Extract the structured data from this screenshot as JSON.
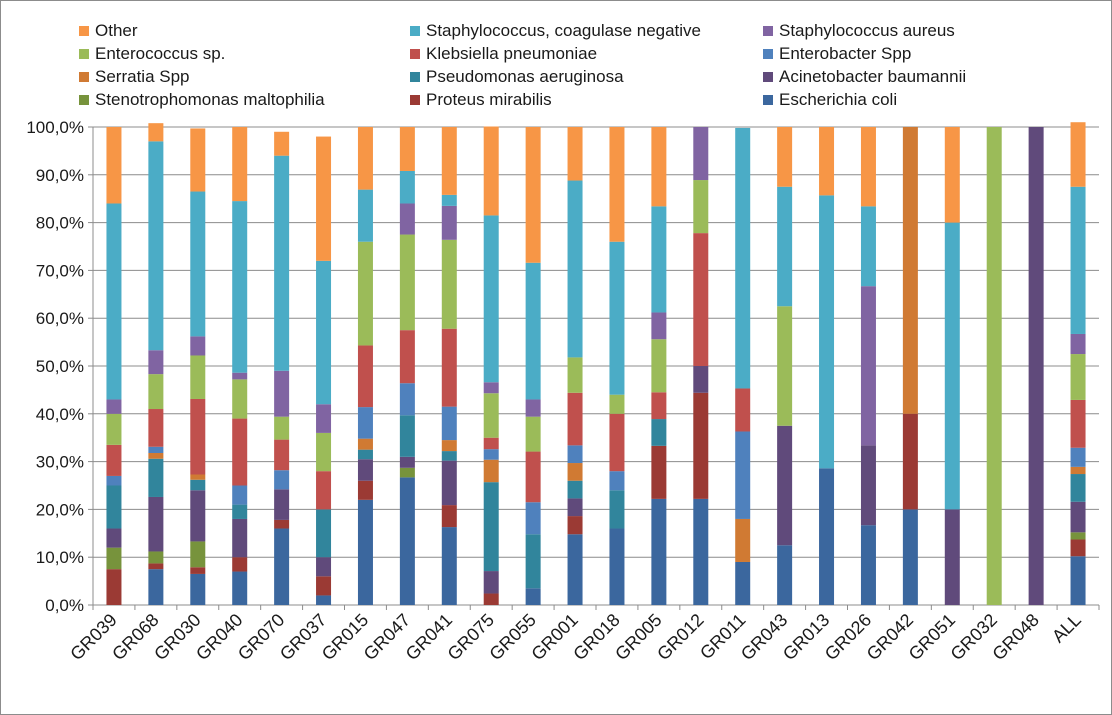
{
  "colors": {
    "Other": "#f79646",
    "Staphylococcus, coagulase negative": "#4bacc6",
    "Staphylococcus aureus": "#8064a2",
    "Enterococcus sp.": "#9bbb59",
    "Klebsiella pneumoniae": "#c0504d",
    "Enterobacter Spp": "#4f81bd",
    "Serratia Spp": "#d07a33",
    "Pseudomonas aeruginosa": "#31859c",
    "Acinetobacter baumannii": "#604a7b",
    "Stenotrophomonas maltophilia": "#77933c",
    "Proteus mirabilis": "#9b3a34",
    "Escherichia coli": "#3b679e"
  },
  "chart_data": {
    "type": "bar",
    "stacked": true,
    "title": "",
    "xlabel": "",
    "ylabel": "",
    "ylim": [
      0,
      100
    ],
    "y_ticks": [
      "0,0%",
      "10,0%",
      "20,0%",
      "30,0%",
      "40,0%",
      "50,0%",
      "60,0%",
      "70,0%",
      "80,0%",
      "90,0%",
      "100,0%"
    ],
    "grid": true,
    "legend_position": "top",
    "legend": [
      "Other",
      "Staphylococcus, coagulase negative",
      "Staphylococcus aureus",
      "Enterococcus sp.",
      "Klebsiella pneumoniae",
      "Enterobacter Spp",
      "Serratia Spp",
      "Pseudomonas aeruginosa",
      "Acinetobacter baumannii",
      "Stenotrophomonas maltophilia",
      "Proteus mirabilis",
      "Escherichia coli"
    ],
    "categories": [
      "GR039",
      "GR068",
      "GR030",
      "GR040",
      "GR070",
      "GR037",
      "GR015",
      "GR047",
      "GR041",
      "GR075",
      "GR055",
      "GR001",
      "GR018",
      "GR005",
      "GR012",
      "GR011",
      "GR043",
      "GR013",
      "GR026",
      "GR042",
      "GR051",
      "GR032",
      "GR048",
      "ALL"
    ],
    "series": [
      {
        "name": "Escherichia coli",
        "values": [
          0,
          7.5,
          6.5,
          7,
          16,
          2,
          22,
          26.7,
          16.3,
          0,
          3.5,
          14.8,
          16,
          22.2,
          22.2,
          9,
          12.5,
          28.6,
          16.7,
          20,
          0,
          0,
          0,
          10.2
        ]
      },
      {
        "name": "Proteus mirabilis",
        "values": [
          7.5,
          1.2,
          1.4,
          3,
          1.8,
          4,
          4,
          0,
          4.6,
          2.4,
          0,
          3.8,
          0,
          11.1,
          22.2,
          0,
          0,
          0,
          0,
          20,
          0,
          0,
          0,
          3.5
        ]
      },
      {
        "name": "Stenotrophomonas maltophilia",
        "values": [
          4.5,
          2.5,
          5.4,
          0,
          0,
          0,
          0,
          2,
          0,
          0,
          0,
          0,
          0,
          0,
          0,
          0,
          0,
          0,
          0,
          0,
          0,
          0,
          0,
          1.5
        ]
      },
      {
        "name": "Acinetobacter baumannii",
        "values": [
          4,
          11.4,
          10.7,
          8,
          6.4,
          4,
          4.5,
          2.3,
          9.3,
          4.7,
          0,
          3.7,
          0,
          0,
          5.6,
          0,
          25,
          0,
          16.7,
          0,
          20,
          0,
          100,
          6.4
        ]
      },
      {
        "name": "Pseudomonas aeruginosa",
        "values": [
          9,
          8,
          2.2,
          3,
          0,
          10,
          2,
          8.7,
          2,
          18.6,
          11.3,
          3.7,
          8,
          5.6,
          0,
          0,
          0,
          0,
          0,
          0,
          0,
          0,
          0,
          5.8
        ]
      },
      {
        "name": "Serratia Spp",
        "values": [
          0,
          1.2,
          1.1,
          0,
          0,
          0,
          2.3,
          0,
          2.3,
          4.7,
          0,
          3.7,
          0,
          0,
          0,
          9,
          0,
          0,
          0,
          60,
          0,
          0,
          0,
          1.5
        ]
      },
      {
        "name": "Enterobacter Spp",
        "values": [
          2,
          1.3,
          0,
          4,
          4,
          0,
          6.6,
          6.7,
          7,
          2.2,
          6.7,
          3.7,
          4,
          0,
          0,
          18.3,
          0,
          0,
          0,
          0,
          0,
          0,
          0,
          4
        ]
      },
      {
        "name": "Klebsiella pneumoniae",
        "values": [
          6.5,
          7.9,
          15.8,
          14,
          6.4,
          8,
          12.9,
          11.1,
          16.3,
          2.4,
          10.6,
          11,
          12,
          5.6,
          27.8,
          9,
          0,
          0,
          0,
          0,
          0,
          0,
          0,
          10
        ]
      },
      {
        "name": "Enterococcus sp.",
        "values": [
          6.5,
          7.3,
          9.1,
          8.2,
          4.8,
          8,
          21.7,
          20,
          18.6,
          9.3,
          7.3,
          7.4,
          4,
          11.1,
          11.1,
          0,
          25,
          0,
          0,
          0,
          0,
          100,
          0,
          9.6
        ]
      },
      {
        "name": "Staphylococcus aureus",
        "values": [
          3,
          5,
          4,
          1.4,
          9.6,
          6,
          0,
          6.5,
          7.1,
          2.3,
          3.6,
          0,
          0,
          5.6,
          11.1,
          0,
          0,
          0,
          33.3,
          0,
          0,
          0,
          0,
          4.2
        ]
      },
      {
        "name": "Staphylococcus, coagulase negative",
        "values": [
          41,
          43.7,
          30.3,
          35.9,
          45,
          30,
          10.9,
          6.8,
          2.3,
          34.9,
          28.6,
          37,
          32,
          22.2,
          0,
          54.5,
          25,
          57.1,
          16.7,
          0,
          60,
          0,
          0,
          30.8
        ]
      },
      {
        "name": "Other",
        "values": [
          16,
          3.8,
          13.2,
          15.5,
          5,
          26,
          13.1,
          9.2,
          14.2,
          18.6,
          28.4,
          11.2,
          24,
          16.6,
          0,
          0,
          12.5,
          14.3,
          16.6,
          0,
          20,
          0,
          0,
          13.5
        ]
      }
    ]
  }
}
